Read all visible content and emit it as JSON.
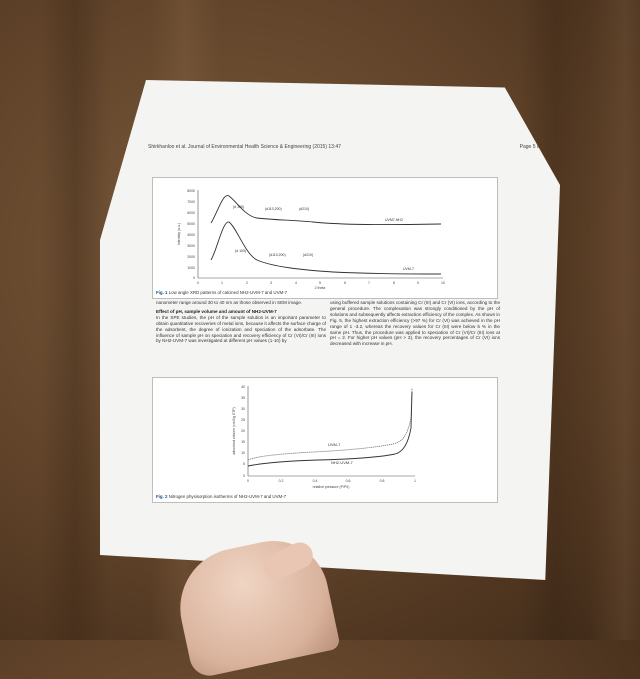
{
  "header": {
    "left": "Shirkhanloo et al. Journal of Environmental Health Science & Engineering (2015) 13:47",
    "right": "Page 5 of 12"
  },
  "fig1": {
    "caption_lead": "Fig. 1",
    "caption": "Low angle XRD patterns of calcined NH2-UVM-7 and UVM-7",
    "ylabel": "Intensity (a.u.)",
    "xlabel": "2 theta",
    "y_ticks": [
      "8000",
      "7000",
      "6000",
      "5000",
      "4000",
      "3000",
      "2000",
      "1000",
      "0"
    ],
    "x_ticks": [
      "0",
      "1",
      "2",
      "3",
      "4",
      "5",
      "6",
      "7",
      "8",
      "9",
      "10"
    ],
    "labels": {
      "top_peak1": "(d 100)",
      "top_peak2": "(d110,200)",
      "top_peak3": "(d210)",
      "top_series": "UVM7-NH2",
      "bot_peak1": "(d 100)",
      "bot_peak2": "(d110,200)",
      "bot_peak3": "(d210)",
      "bot_series": "UVM-7"
    }
  },
  "fig2": {
    "caption_lead": "Fig. 2",
    "caption": "Nitrogen physisorption isotherms of NH2-UVM-7 and UVM-7",
    "ylabel": "adsorbed volume (cm3/g STP)",
    "xlabel": "relative pressure (P/P0)",
    "y_ticks": [
      "40",
      "35",
      "30",
      "25",
      "20",
      "15",
      "10",
      "5",
      "0"
    ],
    "x_ticks": [
      "0",
      "0.2",
      "0.4",
      "0.6",
      "0.8",
      "1"
    ],
    "series_labels": {
      "a": "UVM-7",
      "b": "NH2-UVM-7"
    }
  },
  "body": {
    "left_intro": "nanometer range around 30 to 40 nm as those observed in SEM image.",
    "left_heading": "Effect of pH, sample volume and amount of NH2-UVM-7",
    "left_para": "In the SPE studies, the pH of the sample solution is an important parameter to obtain quantitative recoveries of metal ions, because it affects the surface charge of the adsorbent, the degree of ionization and speciation of the adsorbate. The influence of sample pH on speciation and recovery efficiency of Cr (VI)/Cr (III) ions by NH2-UVM-7 was investigated at different pH values (1-10) by",
    "right_para": "using buffered sample solutions containing Cr (III) and Cr (VI) ions, according to the general procedure. The complexation was strongly conditioned by the pH of solutions and subsequently affects extraction efficiency of the complex. As shown in Fig. 5, the highest extraction efficiency (>97 %) for Cr (VI) was achieved in the pH range of 1 -3.2, whereas the recovery values for Cr (III) were below 5 % in the same pH. Thus, the procedure was applied to speciation of Cr (VI)/Cr (III) ions at pH = 2. For higher pH values (pH > 3), the recovery percentages of Cr (VI) ions decreased with increase in pH."
  },
  "colors": {
    "background": "#5e4128",
    "paper": "#f4f4f2",
    "caption_accent": "#1a4c8a",
    "series_a": "#777777",
    "series_b": "#333333"
  }
}
